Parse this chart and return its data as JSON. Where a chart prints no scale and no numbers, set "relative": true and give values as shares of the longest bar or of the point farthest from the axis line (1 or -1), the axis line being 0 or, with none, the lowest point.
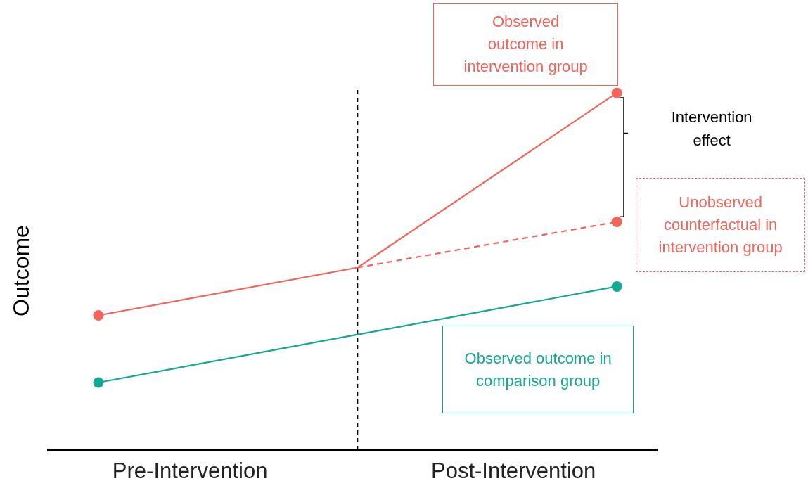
{
  "chart_data": {
    "type": "line",
    "relative": true,
    "ylabel": "Outcome",
    "categories": [
      null,
      null,
      null
    ],
    "marker": "circle",
    "series": [
      {
        "name": "Observed outcome in intervention group",
        "color": "#f2655b",
        "line_style": "solid",
        "values": [
          0.377,
          0.511,
          1
        ]
      },
      {
        "name": "Unobserved counterfactual in intervention group",
        "color": "#f2655b",
        "line_style": "dashed",
        "values": [
          null,
          0.511,
          0.639
        ]
      },
      {
        "name": "Observed outcome in comparison group",
        "color": "#13a894",
        "line_style": "solid",
        "values": [
          0.189,
          null,
          0.458
        ]
      }
    ],
    "annotations": [
      "Intervention effect",
      "Pre-Intervention",
      "Post-Intervention"
    ]
  }
}
